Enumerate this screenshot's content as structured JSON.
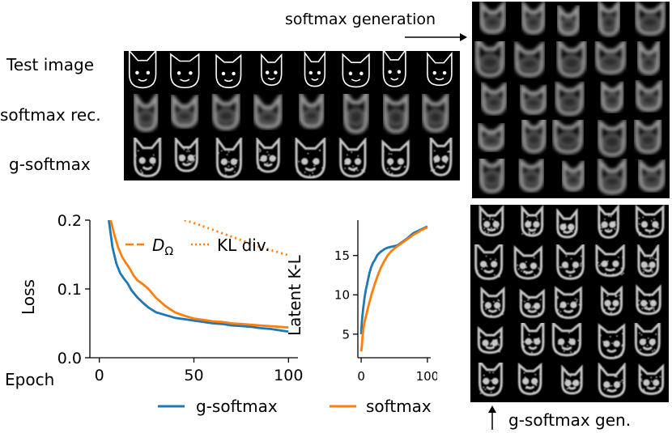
{
  "figure_labels": {
    "test_image": "Test image",
    "softmax_rec": "softmax rec.",
    "g_softmax": "g-softmax",
    "softmax_generation": "softmax generation",
    "g_softmax_gen": "g-softmax gen."
  },
  "legend": {
    "d_omega_main": "D",
    "d_omega_sub": "Ω",
    "kl_div": "KL div.",
    "g_softmax": "g-softmax",
    "softmax": "softmax"
  },
  "colors": {
    "g_softmax": "#1f77b4",
    "softmax": "#ff7f0e",
    "panel_bg": "#000000"
  },
  "chart_data": [
    {
      "type": "line",
      "xlabel": "Epoch",
      "ylabel": "Loss",
      "xlim": [
        -5,
        105
      ],
      "ylim": [
        0,
        0.2
      ],
      "xticks": [
        0,
        50,
        100
      ],
      "yticks": [
        0.0,
        0.1,
        0.2
      ],
      "ytick_labels": [
        "0.0",
        "0.1",
        "0.2"
      ],
      "legend_position": "top-right",
      "series": [
        {
          "name": "g-softmax",
          "color": "#1f77b4",
          "style": "solid",
          "x": [
            5,
            7,
            9,
            11,
            13,
            15,
            17,
            20,
            23,
            26,
            30,
            35,
            40,
            45,
            50,
            55,
            60,
            65,
            70,
            75,
            80,
            85,
            90,
            95,
            100
          ],
          "y": [
            0.2,
            0.16,
            0.137,
            0.123,
            0.115,
            0.108,
            0.098,
            0.088,
            0.08,
            0.073,
            0.066,
            0.062,
            0.058,
            0.056,
            0.054,
            0.052,
            0.05,
            0.049,
            0.047,
            0.046,
            0.045,
            0.043,
            0.042,
            0.04,
            0.038
          ]
        },
        {
          "name": "softmax",
          "color": "#ff7f0e",
          "style": "solid",
          "x": [
            6,
            8,
            10,
            12,
            14,
            16,
            18,
            20,
            23,
            26,
            30,
            35,
            40,
            45,
            50,
            55,
            60,
            65,
            70,
            75,
            80,
            85,
            90,
            95,
            100
          ],
          "y": [
            0.2,
            0.178,
            0.16,
            0.147,
            0.138,
            0.13,
            0.12,
            0.113,
            0.107,
            0.1,
            0.087,
            0.075,
            0.066,
            0.061,
            0.057,
            0.055,
            0.053,
            0.052,
            0.05,
            0.049,
            0.048,
            0.047,
            0.046,
            0.045,
            0.044
          ]
        },
        {
          "name": "KL div.",
          "color": "#ff7f0e",
          "style": "dotted",
          "x": [
            45,
            50,
            55,
            60,
            65,
            70,
            75,
            80,
            85,
            90,
            95,
            100
          ],
          "y": [
            0.2,
            0.196,
            0.191,
            0.186,
            0.181,
            0.176,
            0.171,
            0.166,
            0.161,
            0.157,
            0.153,
            0.149
          ]
        }
      ]
    },
    {
      "type": "line",
      "ylabel": "Latent K-L",
      "xlim": [
        -5,
        105
      ],
      "ylim": [
        2,
        19.5
      ],
      "xticks": [
        0,
        100
      ],
      "yticks": [
        5,
        10,
        15
      ],
      "series": [
        {
          "name": "g-softmax",
          "color": "#1f77b4",
          "x": [
            0,
            1,
            2,
            3,
            4,
            5,
            7,
            9,
            11,
            13,
            15,
            18,
            21,
            24,
            27,
            30,
            35,
            40,
            45,
            50,
            55,
            60,
            65,
            70,
            75,
            80,
            85,
            90,
            95,
            100
          ],
          "y": [
            5,
            6.5,
            7.4,
            8.2,
            8.9,
            9.6,
            10.6,
            11.4,
            12.2,
            12.9,
            13.5,
            14.1,
            14.5,
            15,
            15.3,
            15.5,
            15.8,
            16,
            16.1,
            16.2,
            16.3,
            16.6,
            16.9,
            17.2,
            17.6,
            17.9,
            18.1,
            18.3,
            18.5,
            18.7
          ]
        },
        {
          "name": "softmax",
          "color": "#ff7f0e",
          "x": [
            0,
            1,
            2,
            3,
            5,
            7,
            9,
            11,
            13,
            15,
            18,
            21,
            24,
            27,
            30,
            35,
            40,
            45,
            50,
            55,
            60,
            65,
            70,
            75,
            80,
            85,
            90,
            95,
            100
          ],
          "y": [
            2.8,
            3.5,
            4.6,
            5.5,
            6.5,
            7.2,
            7.9,
            8.6,
            9.2,
            9.9,
            10.7,
            11.5,
            12.2,
            12.9,
            13.5,
            14.3,
            15,
            15.5,
            15.9,
            16.2,
            16.5,
            16.8,
            17.1,
            17.4,
            17.7,
            17.9,
            18.2,
            18.4,
            18.6
          ]
        }
      ]
    }
  ],
  "panels": {
    "top_grid": {
      "rows": 3,
      "cols": 8
    },
    "softmax_gen_grid": {
      "rows": 5,
      "cols": 5
    },
    "g_softmax_gen_grid": {
      "rows": 5,
      "cols": 5
    }
  }
}
